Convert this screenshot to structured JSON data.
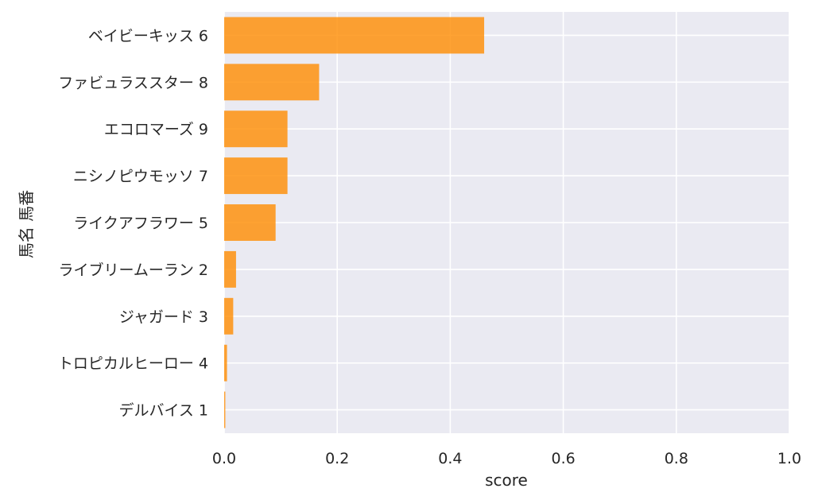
{
  "chart_data": {
    "type": "bar",
    "orientation": "horizontal",
    "categories": [
      "ベイビーキッス 6",
      "ファビュラススター 8",
      "エコロマーズ 9",
      "ニシノピウモッソ 7",
      "ライクアフラワー 5",
      "ライブリームーラン 2",
      "ジャガード 3",
      "トロピカルヒーロー 4",
      "デルバイス 1"
    ],
    "values": [
      0.46,
      0.168,
      0.112,
      0.112,
      0.091,
      0.021,
      0.016,
      0.005,
      0.002
    ],
    "xlabel": "score",
    "ylabel": "馬名 馬番",
    "xlim": [
      0,
      1.0
    ],
    "xticks": [
      "0.0",
      "0.2",
      "0.4",
      "0.6",
      "0.8",
      "1.0"
    ],
    "grid": true,
    "colors": {
      "bar": "#ff8c00",
      "plot_background": "#eaeaf2",
      "grid": "#ffffff"
    }
  }
}
